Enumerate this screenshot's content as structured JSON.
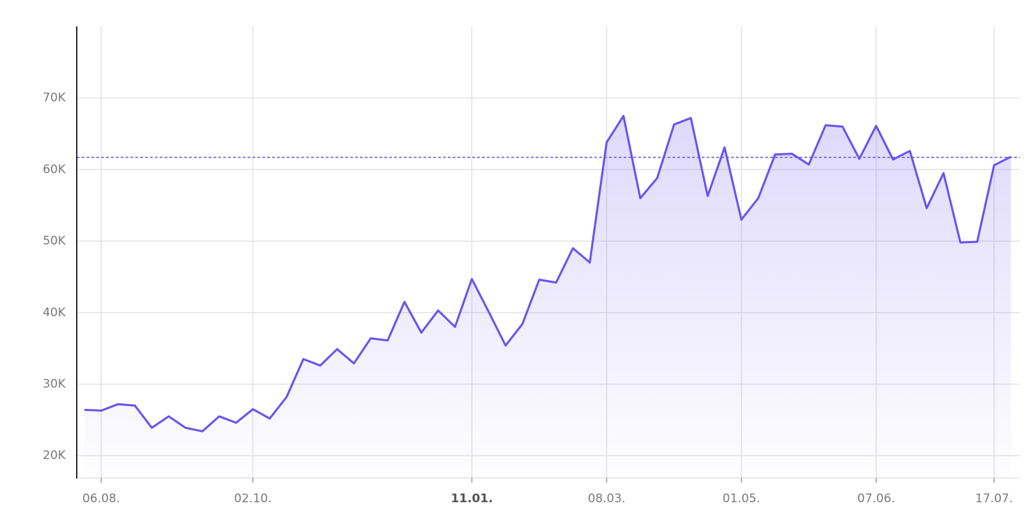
{
  "chart_data": {
    "type": "line",
    "categories": [
      null,
      "06.08.",
      null,
      null,
      null,
      null,
      null,
      null,
      null,
      null,
      "02.10.",
      null,
      null,
      null,
      null,
      null,
      null,
      null,
      null,
      null,
      null,
      null,
      null,
      "11.01.",
      null,
      null,
      null,
      null,
      null,
      null,
      null,
      "08.03.",
      null,
      null,
      null,
      null,
      null,
      null,
      null,
      "01.05.",
      null,
      null,
      null,
      null,
      null,
      null,
      null,
      "07.06.",
      null,
      null,
      null,
      null,
      null,
      null,
      "17.07.",
      null
    ],
    "values": [
      26400,
      26300,
      27200,
      27000,
      23900,
      25500,
      23900,
      23400,
      25500,
      24600,
      26500,
      25200,
      28200,
      33500,
      32600,
      34900,
      32900,
      36400,
      36100,
      41500,
      37200,
      40300,
      38000,
      44700,
      40100,
      35400,
      38400,
      44600,
      44200,
      49000,
      47000,
      63800,
      67500,
      56000,
      58800,
      66300,
      67200,
      56300,
      63100,
      53000,
      56000,
      62100,
      62200,
      60700,
      66200,
      66000,
      61500,
      66100,
      61400,
      62600,
      54600,
      59500,
      49800,
      49900,
      60600,
      61800
    ],
    "color": "#6b52ee",
    "reference_line": 61700,
    "x_emphasis": [
      23
    ],
    "ylim": [
      16900,
      80000
    ],
    "yticks": [
      {
        "value": 20000,
        "label": "20K"
      },
      {
        "value": 30000,
        "label": "30K"
      },
      {
        "value": 40000,
        "label": "40K"
      },
      {
        "value": 50000,
        "label": "50K"
      },
      {
        "value": 60000,
        "label": "60K"
      },
      {
        "value": 70000,
        "label": "70K"
      }
    ],
    "grid": true
  }
}
